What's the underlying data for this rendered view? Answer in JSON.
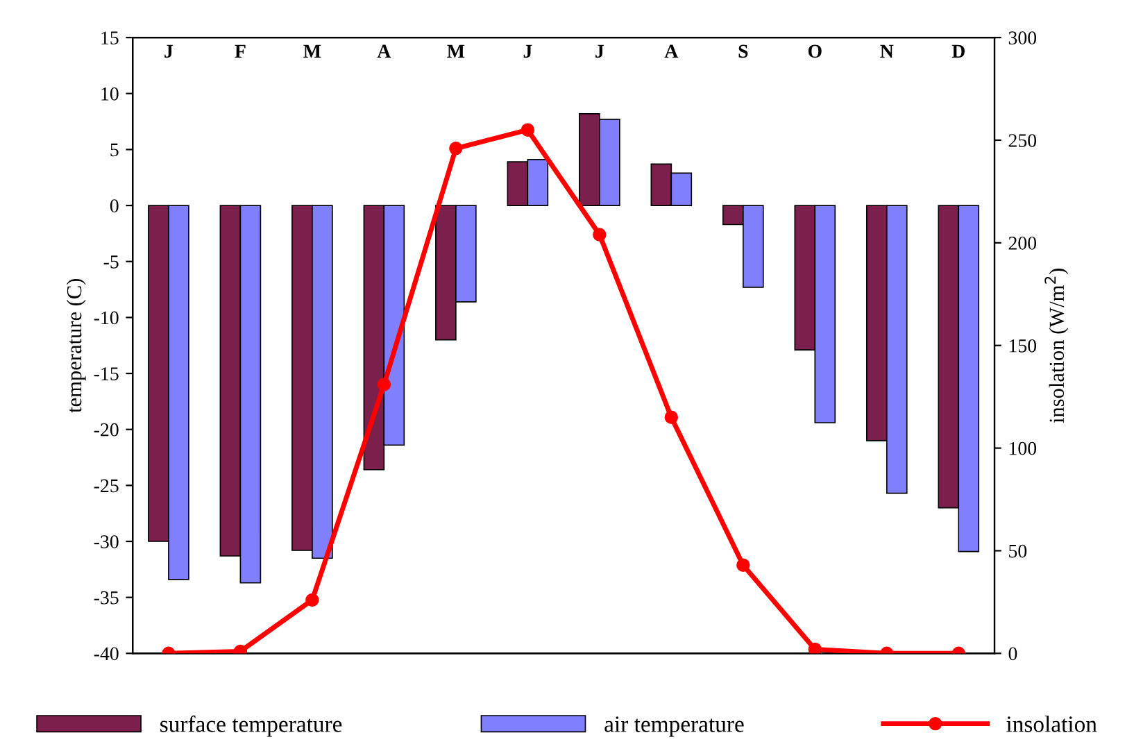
{
  "chart_data": {
    "type": "bar",
    "categories": [
      "J",
      "F",
      "M",
      "A",
      "M",
      "J",
      "J",
      "A",
      "S",
      "O",
      "N",
      "D"
    ],
    "ylabel": "temperature (C)",
    "y2label": "insolation (W/m$^{2}$)",
    "series": [
      {
        "name": "surface temperature",
        "color": "#7b1f4d",
        "values": [
          -30,
          -31.3,
          -30.8,
          -23.6,
          -12,
          3.9,
          8.2,
          3.7,
          -1.7,
          -12.9,
          -21,
          -27
        ]
      },
      {
        "name": "air temperature",
        "color": "#8080ff",
        "values": [
          -33.4,
          -33.7,
          -31.5,
          -21.4,
          -8.6,
          4.1,
          7.7,
          2.9,
          -7.3,
          -19.4,
          -25.7,
          -30.9
        ]
      },
      {
        "name": "insolation",
        "type": "line",
        "axis": "y2",
        "color": "#ff0000",
        "marker": "circle",
        "line_style": "solid",
        "values": [
          0,
          1,
          26,
          131,
          246,
          255,
          204,
          115,
          43,
          2,
          0,
          0
        ]
      }
    ],
    "ylim": [
      -40,
      15
    ],
    "yticks": [
      -40,
      -35,
      -30,
      -25,
      -20,
      -15,
      -10,
      -5,
      0,
      5,
      10,
      15
    ],
    "y2lim": [
      0,
      300
    ],
    "y2ticks": [
      0,
      50,
      100,
      150,
      200,
      250,
      300
    ],
    "grid": false,
    "legend": "bottom"
  }
}
